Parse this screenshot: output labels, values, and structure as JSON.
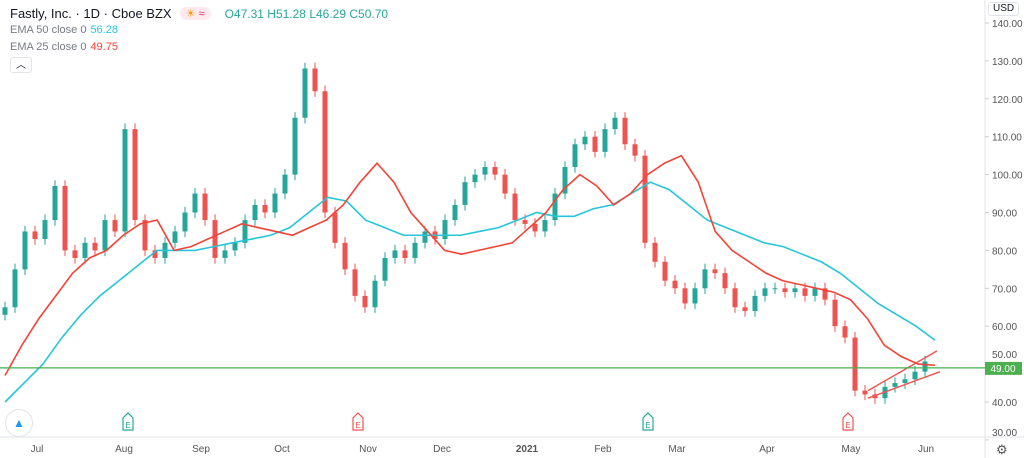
{
  "header": {
    "symbol": "Fastly, Inc. · 1D · Cboe BZX",
    "open": "O47.31",
    "high": "H51.28",
    "low": "L46.29",
    "close": "C50.70"
  },
  "indicators": [
    {
      "label": "EMA 50 close 0",
      "value": "56.28",
      "color": "#26c6da"
    },
    {
      "label": "EMA 25 close 0",
      "value": "49.75",
      "color": "#f44336"
    }
  ],
  "currency": "USD",
  "price_line": {
    "label": "49.00",
    "value": 49,
    "color": "#4caf50"
  },
  "colors": {
    "up": "#26a69a",
    "down": "#ef5350"
  },
  "chart_data": {
    "type": "candlestick",
    "title": "Fastly, Inc. · 1D · Cboe BZX",
    "ylim": [
      30,
      145
    ],
    "y_ticks": [
      "140.00",
      "130.00",
      "120.00",
      "110.00",
      "100.00",
      "90.00",
      "80.00",
      "70.00",
      "60.00",
      "50.00",
      "40.00",
      "30.00"
    ],
    "x_ticks": [
      "Jul",
      "Aug",
      "Sep",
      "Oct",
      "Nov",
      "Dec",
      "2021",
      "Feb",
      "Mar",
      "Apr",
      "May",
      "Jun"
    ],
    "closes": [
      65,
      75,
      85,
      83,
      88,
      97,
      80,
      78,
      82,
      80,
      88,
      85,
      112,
      88,
      80,
      78,
      82,
      85,
      90,
      95,
      88,
      78,
      80,
      82,
      88,
      92,
      90,
      95,
      100,
      115,
      128,
      122,
      90,
      82,
      75,
      68,
      65,
      72,
      78,
      80,
      78,
      82,
      85,
      83,
      88,
      92,
      98,
      100,
      102,
      100,
      95,
      88,
      87,
      85,
      88,
      95,
      102,
      108,
      110,
      106,
      112,
      115,
      108,
      105,
      82,
      77,
      72,
      70,
      66,
      70,
      75,
      74,
      70,
      65,
      64,
      68,
      70,
      70,
      69,
      70,
      68,
      70,
      67,
      60,
      57,
      43,
      42,
      41,
      44,
      45,
      46,
      48,
      50.7
    ],
    "ema25": [
      47,
      55,
      62,
      68,
      74,
      78,
      80,
      84,
      87,
      88,
      80,
      81,
      83,
      85,
      87,
      86,
      85,
      84,
      86,
      88,
      92,
      98,
      103,
      98,
      90,
      85,
      80,
      79,
      80,
      81,
      82,
      86,
      90,
      96,
      100,
      97,
      92,
      95,
      100,
      103,
      105,
      98,
      85,
      80,
      77,
      74,
      72,
      71,
      70,
      69,
      67,
      62,
      55,
      52,
      50,
      49.7
    ],
    "ema50": [
      40,
      45,
      50,
      57,
      63,
      68,
      72,
      76,
      80,
      80,
      80,
      81,
      82,
      83,
      84,
      86,
      90,
      94,
      93,
      88,
      86,
      84,
      84,
      84,
      84,
      85,
      86,
      88,
      90,
      89,
      89,
      91,
      92,
      95,
      98,
      96,
      92,
      88,
      86,
      84,
      82,
      81,
      79,
      77,
      74,
      70,
      66,
      63,
      60,
      56.3
    ],
    "earnings": [
      {
        "x_index": 12,
        "type": "E",
        "color": "#26a69a"
      },
      {
        "x_index": 35,
        "type": "E",
        "color": "#ef5350"
      },
      {
        "x_index": 64,
        "type": "E",
        "color": "#26a69a"
      },
      {
        "x_index": 84,
        "type": "E",
        "color": "#ef5350"
      }
    ],
    "channel": {
      "upper": [
        43,
        53.5
      ],
      "lower": [
        41,
        48
      ]
    }
  }
}
